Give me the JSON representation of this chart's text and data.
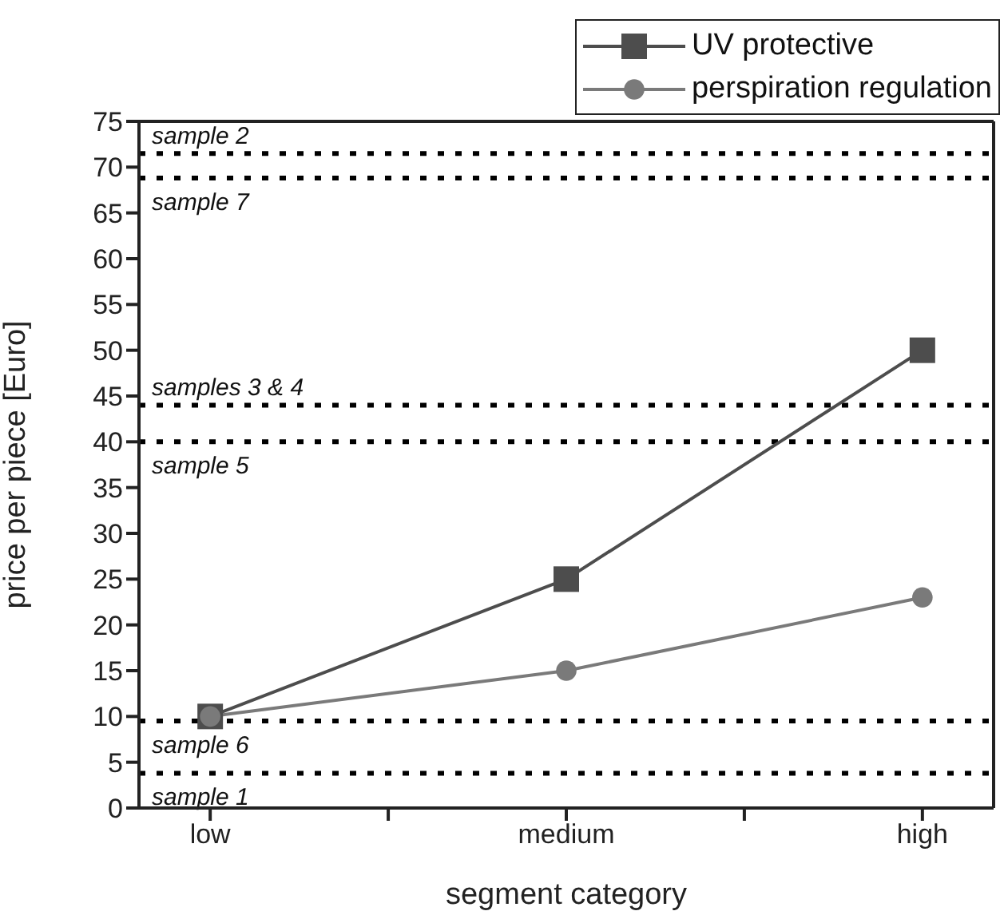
{
  "chart_data": {
    "type": "line",
    "xlabel": "segment category",
    "ylabel": "price per piece [Euro]",
    "categories": [
      "low",
      "medium",
      "high"
    ],
    "series": [
      {
        "name": "UV protective",
        "color": "#4d4d4d",
        "values": [
          10,
          25,
          50
        ],
        "marker": "square"
      },
      {
        "name": "perspiration regulation",
        "color": "#7a7a7a",
        "values": [
          10,
          15,
          23
        ],
        "marker": "circle"
      }
    ],
    "ylim": [
      0,
      75
    ],
    "yticks": [
      0,
      5,
      10,
      15,
      20,
      25,
      30,
      35,
      40,
      45,
      50,
      55,
      60,
      65,
      70,
      75
    ],
    "ref_lines": [
      {
        "axis": "y",
        "value": 71.5,
        "label": "sample 2",
        "line_style": "dotted",
        "color": "#000000"
      },
      {
        "axis": "y",
        "value": 68.8,
        "label": "sample 7",
        "line_style": "dotted",
        "color": "#000000"
      },
      {
        "axis": "y",
        "value": 44,
        "label": "samples 3 & 4",
        "line_style": "dotted",
        "color": "#000000"
      },
      {
        "axis": "y",
        "value": 40,
        "label": "sample 5",
        "line_style": "dotted",
        "color": "#000000"
      },
      {
        "axis": "y",
        "value": 9.5,
        "label": "sample 6",
        "line_style": "dotted",
        "color": "#000000"
      },
      {
        "axis": "y",
        "value": 3.8,
        "label": "sample 1",
        "line_style": "dotted",
        "color": "#000000"
      }
    ],
    "grid": false,
    "legend": "top right",
    "line_style": "solid"
  }
}
